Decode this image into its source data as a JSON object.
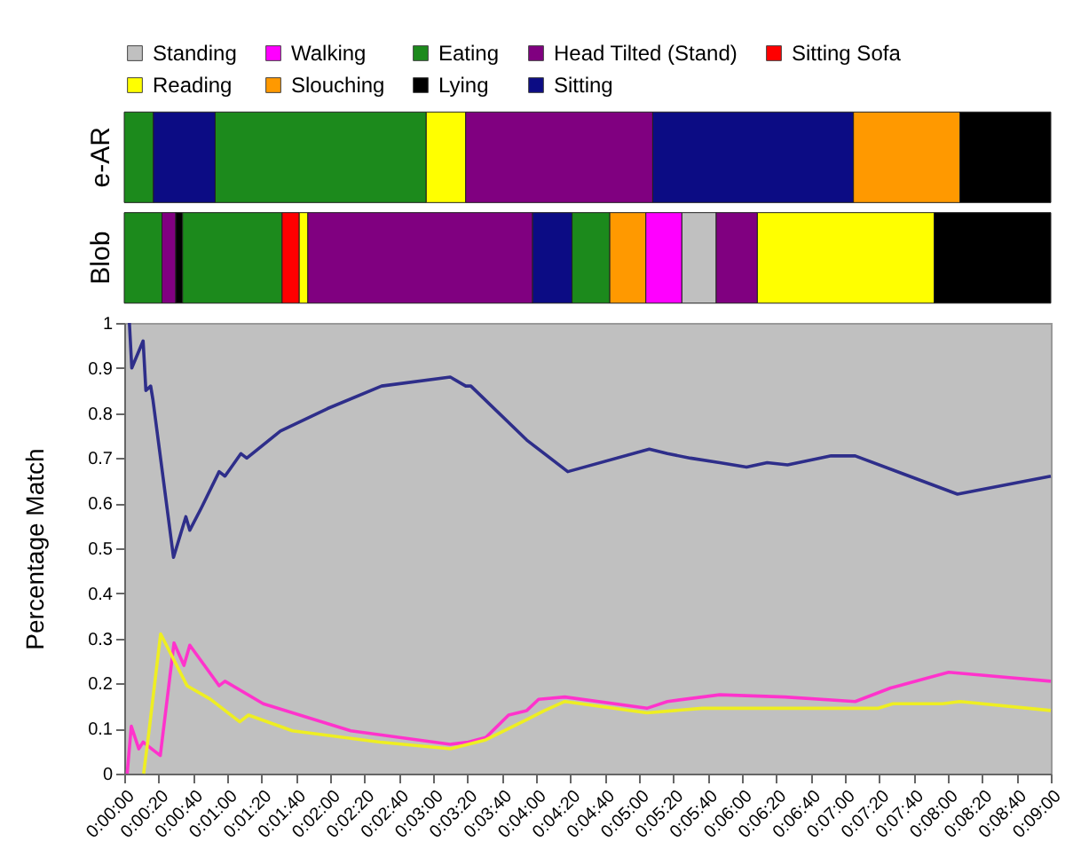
{
  "chart_data": [
    {
      "type": "bar",
      "orientation": "horizontal",
      "stacked": true,
      "categories": [
        "e-AR",
        "Blob"
      ],
      "xlim": [
        0,
        540
      ],
      "tick_labels": "y",
      "grid": false,
      "legend": "top",
      "series": [
        {
          "name": "Standing",
          "color": "#c0c0c0",
          "values": [
            null,
            null
          ]
        },
        {
          "name": "Walking",
          "color": "#ff00ff",
          "values": [
            null,
            null
          ]
        },
        {
          "name": "Eating",
          "color": "#1c8a1c",
          "values": [
            null,
            null
          ]
        },
        {
          "name": "Head Tilted (Stand)",
          "color": "#800080",
          "values": [
            null,
            null
          ]
        },
        {
          "name": "Sitting Sofa",
          "color": "#ff0000",
          "values": [
            null,
            null
          ]
        },
        {
          "name": "Reading",
          "color": "#ffff00",
          "values": [
            null,
            null
          ]
        },
        {
          "name": "Slouching",
          "color": "#ff9900",
          "values": [
            null,
            null
          ]
        },
        {
          "name": "Lying",
          "color": "#000000",
          "values": [
            null,
            null
          ]
        },
        {
          "name": "Sitting",
          "color": "#0c0c84",
          "values": [
            null,
            null
          ]
        },
        {
          "color": "#1c8a1c",
          "values": [
            17,
            null
          ]
        },
        {
          "color": "#0c0c84",
          "values": [
            36,
            null
          ]
        },
        {
          "color": "#1c8a1c",
          "values": [
            123,
            null
          ]
        },
        {
          "color": "#ffff00",
          "values": [
            23,
            null
          ]
        },
        {
          "color": "#800080",
          "values": [
            109,
            null
          ]
        },
        {
          "color": "#0c0c84",
          "values": [
            117,
            null
          ]
        },
        {
          "color": "#ff9900",
          "values": [
            62,
            null
          ]
        },
        {
          "color": "#000000",
          "values": [
            53,
            null
          ]
        },
        {
          "color": "#1c8a1c",
          "values": [
            null,
            22
          ]
        },
        {
          "color": "#800080",
          "values": [
            null,
            8
          ]
        },
        {
          "color": "#000000",
          "values": [
            null,
            4
          ]
        },
        {
          "color": "#1c8a1c",
          "values": [
            null,
            58
          ]
        },
        {
          "color": "#ff0000",
          "values": [
            null,
            10
          ]
        },
        {
          "color": "#ffff00",
          "values": [
            null,
            5
          ]
        },
        {
          "color": "#800080",
          "values": [
            null,
            131
          ]
        },
        {
          "color": "#0c0c84",
          "values": [
            null,
            23
          ]
        },
        {
          "color": "#1c8a1c",
          "values": [
            null,
            22
          ]
        },
        {
          "color": "#ff9900",
          "values": [
            null,
            21
          ]
        },
        {
          "color": "#ff00ff",
          "values": [
            null,
            21
          ]
        },
        {
          "color": "#c0c0c0",
          "values": [
            null,
            20
          ]
        },
        {
          "color": "#800080",
          "values": [
            null,
            24
          ]
        },
        {
          "color": "#ffff00",
          "values": [
            null,
            103
          ]
        },
        {
          "color": "#000000",
          "values": [
            null,
            68
          ]
        }
      ]
    },
    {
      "type": "line",
      "ylabel": "Percentage Match",
      "xlim": [
        0,
        540
      ],
      "ylim": [
        0,
        1
      ],
      "grid": false,
      "yticks": [
        0,
        0.1,
        0.2,
        0.3,
        0.4,
        0.5,
        0.6,
        0.7,
        0.8,
        0.9,
        1
      ],
      "xticks": [
        {
          "value": 0,
          "label": "0:00:00"
        },
        {
          "value": 20,
          "label": "0:00:20"
        },
        {
          "value": 40,
          "label": "0:00:40"
        },
        {
          "value": 60,
          "label": "0:01:00"
        },
        {
          "value": 80,
          "label": "0:01:20"
        },
        {
          "value": 100,
          "label": "0:01:40"
        },
        {
          "value": 120,
          "label": "0:02:00"
        },
        {
          "value": 140,
          "label": "0:02:20"
        },
        {
          "value": 160,
          "label": "0:02:40"
        },
        {
          "value": 180,
          "label": "0:03:00"
        },
        {
          "value": 200,
          "label": "0:03:20"
        },
        {
          "value": 220,
          "label": "0:03:40"
        },
        {
          "value": 240,
          "label": "0:04:00"
        },
        {
          "value": 260,
          "label": "0:04:20"
        },
        {
          "value": 280,
          "label": "0:04:40"
        },
        {
          "value": 300,
          "label": "0:05:00"
        },
        {
          "value": 320,
          "label": "0:05:20"
        },
        {
          "value": 340,
          "label": "0:05:40"
        },
        {
          "value": 360,
          "label": "0:06:00"
        },
        {
          "value": 380,
          "label": "0:06:20"
        },
        {
          "value": 400,
          "label": "0:06:40"
        },
        {
          "value": 420,
          "label": "0:07:00"
        },
        {
          "value": 440,
          "label": "0:07:20"
        },
        {
          "value": 460,
          "label": "0:07:40"
        },
        {
          "value": 480,
          "label": "0:08:00"
        },
        {
          "value": 500,
          "label": "0:08:20"
        },
        {
          "value": 520,
          "label": "0:08:40"
        },
        {
          "value": 540,
          "label": "0:09:00"
        }
      ],
      "series": [
        {
          "color": "#2e2e8a",
          "x": [
            3,
            4.4,
            11,
            12.6,
            15.4,
            16.7,
            28.7,
            35.9,
            38.2,
            45,
            55.3,
            58.7,
            68,
            71.4,
            91,
            118.5,
            150,
            190,
            199,
            202,
            234.6,
            258.5,
            306,
            316.6,
            330,
            347,
            362.7,
            374.7,
            386.6,
            412,
            426,
            485.6,
            540
          ],
          "values": [
            1,
            0.9,
            0.96,
            0.85,
            0.86,
            0.83,
            0.48,
            0.57,
            0.54,
            0.59,
            0.67,
            0.66,
            0.71,
            0.7,
            0.76,
            0.81,
            0.86,
            0.88,
            0.86,
            0.86,
            0.74,
            0.67,
            0.72,
            0.71,
            0.7,
            0.69,
            0.68,
            0.69,
            0.685,
            0.705,
            0.705,
            0.62,
            0.66
          ]
        },
        {
          "color": "#ff33cc",
          "x": [
            1.7,
            4.1,
            8.5,
            11,
            16,
            21,
            29,
            34.8,
            38.2,
            55.3,
            58.7,
            81,
            132,
            190,
            200.5,
            210.7,
            224,
            234.6,
            241.5,
            256.8,
            304.6,
            316.6,
            347,
            385,
            426,
            446.6,
            480.5,
            540
          ],
          "values": [
            0,
            0.105,
            0.055,
            0.07,
            0.055,
            0.04,
            0.29,
            0.24,
            0.285,
            0.195,
            0.205,
            0.155,
            0.095,
            0.065,
            0.07,
            0.08,
            0.13,
            0.14,
            0.165,
            0.17,
            0.145,
            0.16,
            0.175,
            0.17,
            0.16,
            0.19,
            0.225,
            0.205
          ]
        },
        {
          "color": "#eeee22",
          "x": [
            11.3,
            14.3,
            21.2,
            36.6,
            50.2,
            67.3,
            72.4,
            98,
            149,
            190,
            210.7,
            234.6,
            245,
            256.8,
            304.6,
            337,
            385,
            439.5,
            448,
            477,
            487,
            540
          ],
          "values": [
            0,
            0.09,
            0.31,
            0.195,
            0.165,
            0.115,
            0.13,
            0.095,
            0.07,
            0.055,
            0.075,
            0.12,
            0.14,
            0.16,
            0.135,
            0.145,
            0.145,
            0.145,
            0.155,
            0.155,
            0.16,
            0.14
          ]
        }
      ]
    }
  ]
}
